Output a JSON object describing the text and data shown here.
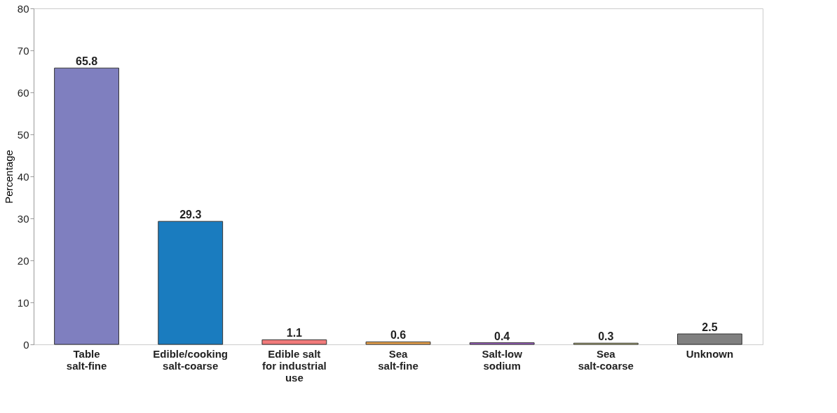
{
  "chart_data": {
    "type": "bar",
    "ylabel": "Percentage",
    "categories": [
      "Table\nsalt-fine",
      "Edible/cooking\nsalt-coarse",
      "Edible salt\nfor industrial\nuse",
      "Sea\nsalt-fine",
      "Salt-low\nsodium",
      "Sea\nsalt-coarse",
      "Unknown"
    ],
    "values": [
      65.8,
      29.3,
      1.1,
      0.6,
      0.4,
      0.3,
      2.5
    ],
    "colors": [
      "#7f7fbf",
      "#1a7cbf",
      "#f07a7a",
      "#eaa24a",
      "#a060c8",
      "#d0d080",
      "#808080"
    ],
    "ylim": [
      0,
      80
    ],
    "yticks": [
      0,
      10,
      20,
      30,
      40,
      50,
      60,
      70,
      80
    ],
    "grid": false,
    "data_labels": true
  }
}
